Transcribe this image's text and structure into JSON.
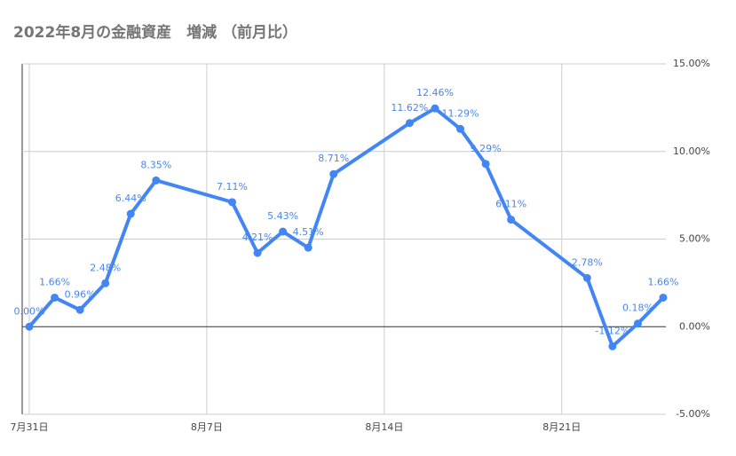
{
  "chart_data": {
    "type": "line",
    "title": "2022年8月の金融資産　増減 （前月比）",
    "x": [
      "7/31",
      "8/1",
      "8/2",
      "8/3",
      "8/4",
      "8/5",
      "8/8",
      "8/9",
      "8/10",
      "8/11",
      "8/12",
      "8/15",
      "8/16",
      "8/17",
      "8/18",
      "8/19",
      "8/22",
      "8/23",
      "8/24",
      "8/25"
    ],
    "xlim": [
      "7/31",
      "8/25"
    ],
    "xticks": [
      {
        "value": "7/31",
        "label": "7月31日"
      },
      {
        "value": "8/7",
        "label": "8月7日"
      },
      {
        "value": "8/14",
        "label": "8月14日"
      },
      {
        "value": "8/21",
        "label": "8月21日"
      }
    ],
    "series": [
      {
        "color": "#4285f4",
        "values": [
          0.0,
          1.66,
          0.96,
          2.48,
          6.44,
          8.35,
          7.11,
          4.21,
          5.43,
          4.51,
          8.71,
          11.62,
          12.46,
          11.29,
          9.29,
          6.11,
          2.78,
          -1.12,
          0.18,
          1.66
        ],
        "value_labels": [
          "0.00%",
          "1.66%",
          "0.96%",
          "2.48%",
          "6.44%",
          "8.35%",
          "7.11%",
          "4.21%",
          "5.43%",
          "4.51%",
          "8.71%",
          "11.62%",
          "12.46%",
          "11.29%",
          "9.29%",
          "6.11%",
          "2.78%",
          "-1.12%",
          "0.18%",
          "1.66%"
        ]
      }
    ],
    "ylim": [
      -5,
      15
    ],
    "yticks": [
      {
        "value": -5,
        "label": "-5.00%"
      },
      {
        "value": 0,
        "label": "0.00%"
      },
      {
        "value": 5,
        "label": "5.00%"
      },
      {
        "value": 10,
        "label": "10.00%"
      },
      {
        "value": 15,
        "label": "15.00%"
      }
    ],
    "y_axis_side": "right",
    "grid": true
  }
}
